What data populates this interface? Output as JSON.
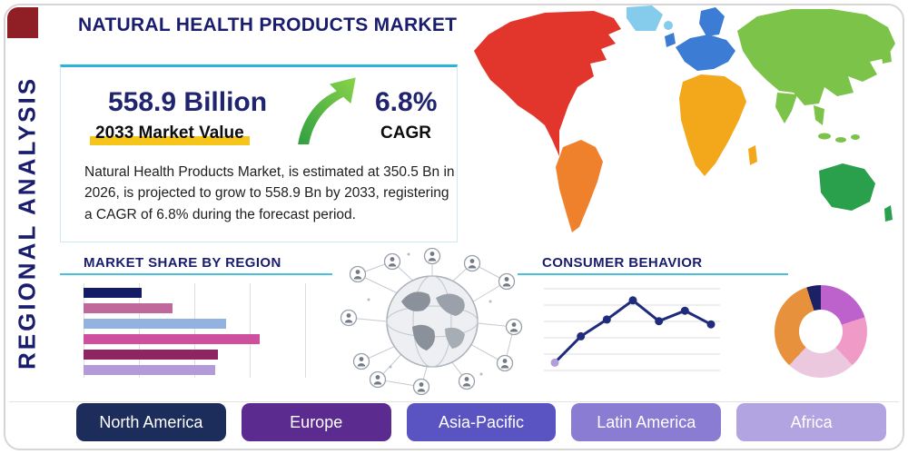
{
  "header": {
    "title": "NATURAL HEALTH PRODUCTS MARKET",
    "side_label": "REGIONAL ANALYSIS"
  },
  "summary": {
    "market_value": "558.9 Billion",
    "market_value_caption": "2033 Market Value",
    "cagr_value": "6.8%",
    "cagr_caption": "CAGR",
    "description": "Natural Health Products Market, is estimated at 350.5 Bn in 2026, is projected to grow to 558.9 Bn by 2033, registering a CAGR of 6.8% during the forecast period."
  },
  "sections": {
    "market_share_title": "MARKET SHARE BY REGION",
    "consumer_behavior_title": "CONSUMER BEHAVIOR"
  },
  "map": {
    "colors": {
      "north_america": "#e2352b",
      "greenland": "#85cbec",
      "south_america": "#f0812c",
      "europe": "#3c7cd4",
      "africa": "#f3a81b",
      "asia": "#7cc34a",
      "australia": "#2aa04c"
    }
  },
  "chart_data": [
    {
      "type": "bar",
      "title": "Market Share by Region",
      "orientation": "horizontal",
      "categories": [
        "",
        "",
        "",
        "",
        "",
        ""
      ],
      "values": [
        26,
        40,
        64,
        79,
        60,
        59
      ],
      "colors": [
        "#141b66",
        "#c0689c",
        "#92b3e0",
        "#cf4f9f",
        "#8e2462",
        "#b29bd8"
      ],
      "xlim": [
        0,
        100
      ],
      "grid": true
    },
    {
      "type": "line",
      "title": "Consumer Behavior",
      "x": [
        1,
        2,
        3,
        4,
        5,
        6,
        7
      ],
      "values": [
        12,
        45,
        66,
        90,
        64,
        77,
        60
      ],
      "ylim": [
        0,
        100
      ],
      "grid": true,
      "line_color": "#1f2b7b",
      "first_marker_color": "#b39ddb"
    },
    {
      "type": "pie",
      "variant": "donut",
      "slices": [
        {
          "label": "",
          "value": 20,
          "color": "#bd62cc"
        },
        {
          "label": "",
          "value": 18,
          "color": "#f09ac8"
        },
        {
          "label": "",
          "value": 24,
          "color": "#ecc8de"
        },
        {
          "label": "",
          "value": 33,
          "color": "#e8913c"
        },
        {
          "label": "",
          "value": 5,
          "color": "#1c2166"
        }
      ]
    }
  ],
  "regions": [
    {
      "label": "North America",
      "color": "#1c2c5b"
    },
    {
      "label": "Europe",
      "color": "#5b2b90"
    },
    {
      "label": "Asia-Pacific",
      "color": "#5a54c2"
    },
    {
      "label": "Latin America",
      "color": "#8a7bd3"
    },
    {
      "label": "Africa",
      "color": "#b2a4e0"
    }
  ],
  "theme": {
    "navy": "#1a1d6e",
    "teal_accent": "#2ab5d8",
    "highlight_yellow": "#f5c51b",
    "arrow_green": "#3fae3f",
    "frame_border": "#d6d6d6",
    "corner_square": "#8f1f24"
  }
}
